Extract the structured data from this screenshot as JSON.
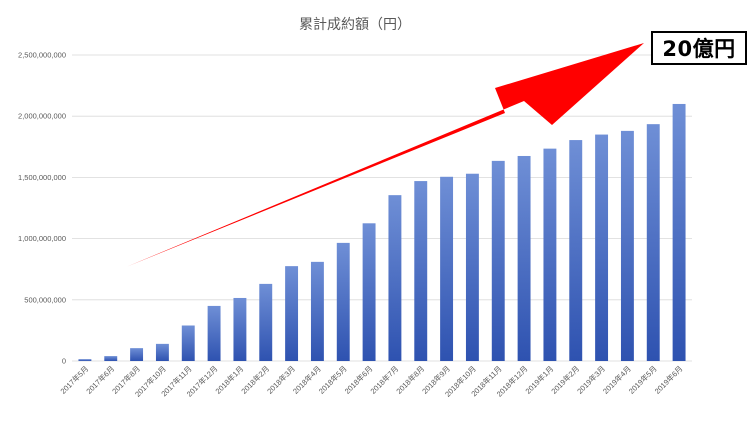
{
  "chart_data": {
    "type": "bar",
    "title": "累計成約額（円）",
    "xlabel": "",
    "ylabel": "",
    "categories": [
      "2017年5月",
      "2017年6月",
      "2017年8月",
      "2017年10月",
      "2017年11月",
      "2017年12月",
      "2018年1月",
      "2018年2月",
      "2018年3月",
      "2018年4月",
      "2018年5月",
      "2018年6月",
      "2018年7月",
      "2018年8月",
      "2018年9月",
      "2018年10月",
      "2018年11月",
      "2018年12月",
      "2019年1月",
      "2019年2月",
      "2019年3月",
      "2019年4月",
      "2019年5月",
      "2019年6月"
    ],
    "values": [
      15000000,
      40000000,
      105000000,
      140000000,
      290000000,
      450000000,
      515000000,
      630000000,
      775000000,
      810000000,
      965000000,
      1125000000,
      1355000000,
      1470000000,
      1505000000,
      1530000000,
      1635000000,
      1675000000,
      1735000000,
      1805000000,
      1850000000,
      1880000000,
      1935000000,
      2100000000
    ],
    "ylim": [
      0,
      2500000000
    ],
    "yticks": [
      "0",
      "500,000,000",
      "1,000,000,000",
      "1,500,000,000",
      "2,000,000,000",
      "2,500,000,000"
    ],
    "grid": true,
    "legend": "none",
    "colors": {
      "bar_top": "#6f8fd6",
      "bar_bottom": "#2e52b0",
      "grid": "#d9d9d9",
      "arrow": "#ff0000"
    },
    "annotation": {
      "text": "20億円",
      "shape": "red-arrow-up-right"
    }
  }
}
